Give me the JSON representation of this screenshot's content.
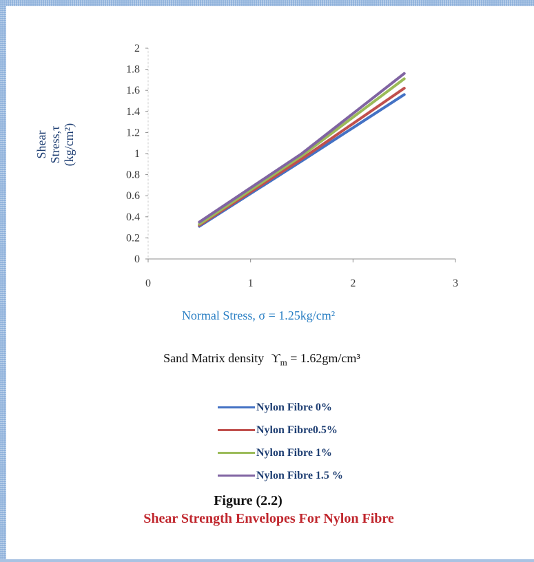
{
  "chart_data": {
    "type": "line",
    "title": "",
    "xlabel": "Normal Stress, σ = 1.25kg/cm²",
    "ylabel_lines": [
      "Shear",
      "Stress,τ",
      "(kg/cm²)"
    ],
    "xlim": [
      0,
      3
    ],
    "ylim": [
      0,
      2
    ],
    "x_ticks": [
      "0",
      "1",
      "2",
      "3"
    ],
    "y_ticks": [
      "0",
      "0.2",
      "0.4",
      "0.6",
      "0.8",
      "1",
      "1.2",
      "1.4",
      "1.6",
      "1.8",
      "2"
    ],
    "legend_position": "bottom",
    "grid": false,
    "x": [
      0.5,
      1.5,
      2.5
    ],
    "series": [
      {
        "name": "Nylon Fibre 0%",
        "color": "#4472c4",
        "values": [
          0.31,
          0.93,
          1.56
        ]
      },
      {
        "name": "Nylon Fibre0.5%",
        "color": "#c0504d",
        "values": [
          0.32,
          0.95,
          1.62
        ]
      },
      {
        "name": "Nylon Fibre 1%",
        "color": "#9bbb59",
        "values": [
          0.33,
          0.98,
          1.71
        ]
      },
      {
        "name": "Nylon Fibre 1.5 %",
        "color": "#8064a2",
        "values": [
          0.35,
          1.0,
          1.76
        ]
      }
    ]
  },
  "density_label": "Sand Matrix density",
  "density_symbol": "ϒ",
  "density_subscript": "m",
  "density_value": " = 1.62gm/cm³",
  "figure_number": "Figure (2.2)",
  "figure_title": "Shear Strength Envelopes For Nylon Fibre"
}
